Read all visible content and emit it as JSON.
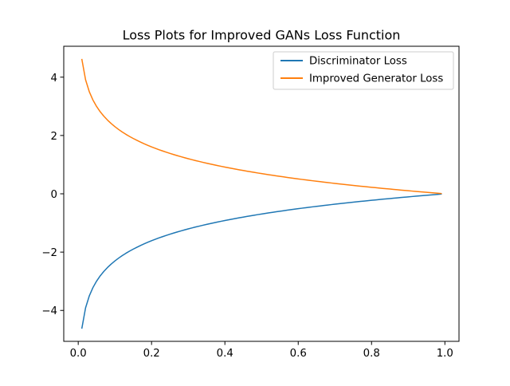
{
  "chart_data": {
    "type": "line",
    "title": "Loss Plots for Improved GANs Loss Function",
    "xlabel": "",
    "ylabel": "",
    "xlim": [
      -0.0395,
      1.0385
    ],
    "ylim": [
      -5.06,
      5.06
    ],
    "x_ticks": [
      {
        "value": 0.0,
        "label": "0.0"
      },
      {
        "value": 0.2,
        "label": "0.2"
      },
      {
        "value": 0.4,
        "label": "0.4"
      },
      {
        "value": 0.6,
        "label": "0.6"
      },
      {
        "value": 0.8,
        "label": "0.8"
      },
      {
        "value": 1.0,
        "label": "1.0"
      }
    ],
    "y_ticks": [
      {
        "value": -4,
        "label": "−4"
      },
      {
        "value": -2,
        "label": "−2"
      },
      {
        "value": 0,
        "label": "0"
      },
      {
        "value": 2,
        "label": "2"
      },
      {
        "value": 4,
        "label": "4"
      }
    ],
    "grid": false,
    "legend_position": "top-right",
    "x": [
      0.01,
      0.02,
      0.03,
      0.04,
      0.05,
      0.06,
      0.07,
      0.08,
      0.09,
      0.1,
      0.11,
      0.12,
      0.13,
      0.14,
      0.15,
      0.16,
      0.17,
      0.18,
      0.19,
      0.2,
      0.21,
      0.22,
      0.23,
      0.24,
      0.25,
      0.26,
      0.27,
      0.28,
      0.29,
      0.3,
      0.31,
      0.32,
      0.33,
      0.34,
      0.35,
      0.36,
      0.37,
      0.38,
      0.39,
      0.4,
      0.41,
      0.42,
      0.43,
      0.44,
      0.45,
      0.46,
      0.47,
      0.48,
      0.49,
      0.5,
      0.51,
      0.52,
      0.53,
      0.54,
      0.55,
      0.56,
      0.57,
      0.58,
      0.59,
      0.6,
      0.61,
      0.62,
      0.63,
      0.64,
      0.65,
      0.66,
      0.67,
      0.68,
      0.69,
      0.7,
      0.71,
      0.72,
      0.73,
      0.74,
      0.75,
      0.76,
      0.77,
      0.78,
      0.79,
      0.8,
      0.81,
      0.82,
      0.83,
      0.84,
      0.85,
      0.86,
      0.87,
      0.88,
      0.89,
      0.9,
      0.91,
      0.92,
      0.93,
      0.94,
      0.95,
      0.96,
      0.97,
      0.98,
      0.99
    ],
    "series": [
      {
        "name": "Discriminator Loss",
        "color": "#1f77b4",
        "values": [
          -4.605,
          -3.912,
          -3.507,
          -3.219,
          -2.996,
          -2.813,
          -2.659,
          -2.526,
          -2.408,
          -2.303,
          -2.207,
          -2.12,
          -2.04,
          -1.966,
          -1.897,
          -1.833,
          -1.772,
          -1.715,
          -1.661,
          -1.609,
          -1.561,
          -1.514,
          -1.47,
          -1.427,
          -1.386,
          -1.347,
          -1.309,
          -1.273,
          -1.238,
          -1.204,
          -1.171,
          -1.139,
          -1.109,
          -1.079,
          -1.05,
          -1.022,
          -0.994,
          -0.968,
          -0.942,
          -0.916,
          -0.892,
          -0.868,
          -0.844,
          -0.821,
          -0.799,
          -0.777,
          -0.755,
          -0.734,
          -0.713,
          -0.693,
          -0.673,
          -0.654,
          -0.635,
          -0.616,
          -0.598,
          -0.58,
          -0.562,
          -0.545,
          -0.528,
          -0.511,
          -0.494,
          -0.478,
          -0.462,
          -0.446,
          -0.431,
          -0.416,
          -0.4,
          -0.386,
          -0.371,
          -0.357,
          -0.342,
          -0.329,
          -0.315,
          -0.301,
          -0.288,
          -0.274,
          -0.261,
          -0.248,
          -0.236,
          -0.223,
          -0.211,
          -0.198,
          -0.186,
          -0.174,
          -0.163,
          -0.151,
          -0.139,
          -0.128,
          -0.117,
          -0.105,
          -0.094,
          -0.083,
          -0.073,
          -0.062,
          -0.051,
          -0.041,
          -0.03,
          -0.02,
          -0.01
        ]
      },
      {
        "name": "Improved Generator Loss",
        "color": "#ff7f0e",
        "values": [
          4.605,
          3.912,
          3.507,
          3.219,
          2.996,
          2.813,
          2.659,
          2.526,
          2.408,
          2.303,
          2.207,
          2.12,
          2.04,
          1.966,
          1.897,
          1.833,
          1.772,
          1.715,
          1.661,
          1.609,
          1.561,
          1.514,
          1.47,
          1.427,
          1.386,
          1.347,
          1.309,
          1.273,
          1.238,
          1.204,
          1.171,
          1.139,
          1.109,
          1.079,
          1.05,
          1.022,
          0.994,
          0.968,
          0.942,
          0.916,
          0.892,
          0.868,
          0.844,
          0.821,
          0.799,
          0.777,
          0.755,
          0.734,
          0.713,
          0.693,
          0.673,
          0.654,
          0.635,
          0.616,
          0.598,
          0.58,
          0.562,
          0.545,
          0.528,
          0.511,
          0.494,
          0.478,
          0.462,
          0.446,
          0.431,
          0.416,
          0.4,
          0.386,
          0.371,
          0.357,
          0.342,
          0.329,
          0.315,
          0.301,
          0.288,
          0.274,
          0.261,
          0.248,
          0.236,
          0.223,
          0.211,
          0.198,
          0.186,
          0.174,
          0.163,
          0.151,
          0.139,
          0.128,
          0.117,
          0.105,
          0.094,
          0.083,
          0.073,
          0.062,
          0.051,
          0.041,
          0.03,
          0.02,
          0.01
        ]
      }
    ]
  }
}
